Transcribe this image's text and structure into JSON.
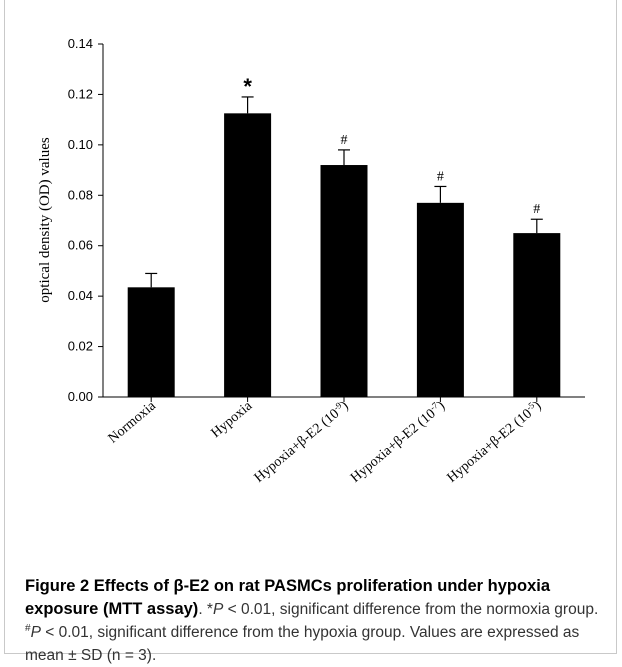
{
  "chart_data": {
    "type": "bar",
    "ylabel": "optical density (OD) values",
    "ylim": [
      0,
      0.14
    ],
    "yticks": [
      "0.00",
      "0.02",
      "0.04",
      "0.06",
      "0.08",
      "0.10",
      "0.12",
      "0.14"
    ],
    "bar_color": "#000000",
    "bars": [
      {
        "label": "Normoxia",
        "label_base": "Normoxia",
        "label_sup": "",
        "label_tail": "",
        "value": 0.0435,
        "error": 0.0055,
        "marker": ""
      },
      {
        "label": "Hypoxia",
        "label_base": "Hypoxia",
        "label_sup": "",
        "label_tail": "",
        "value": 0.1125,
        "error": 0.0065,
        "marker": "*"
      },
      {
        "label": "Hypoxia+β-E2 (10-9)",
        "label_base": "Hypoxia+β-E2 (10",
        "label_sup": "-9",
        "label_tail": ")",
        "value": 0.092,
        "error": 0.006,
        "marker": "#"
      },
      {
        "label": "Hypoxia+β-E2 (10-7)",
        "label_base": "Hypoxia+β-E2 (10",
        "label_sup": "-7",
        "label_tail": ")",
        "value": 0.077,
        "error": 0.0065,
        "marker": "#"
      },
      {
        "label": "Hypoxia+β-E2 (10-5)",
        "label_base": "Hypoxia+β-E2 (10",
        "label_sup": "-5",
        "label_tail": ")",
        "value": 0.065,
        "error": 0.0055,
        "marker": "#"
      }
    ]
  },
  "caption": {
    "title": "Figure 2 Effects of β-E2 on rat PASMCs proliferation under hypoxia exposure (MTT assay)",
    "p1_prefix": ". *",
    "p_symbol": "P",
    "p1_text": " < 0.01, significant difference from the normoxia group. ",
    "p2_sup": "#",
    "p2_text": " < 0.01, significant difference from the hypoxia group. Values are expressed as mean ± SD (n = 3)."
  }
}
